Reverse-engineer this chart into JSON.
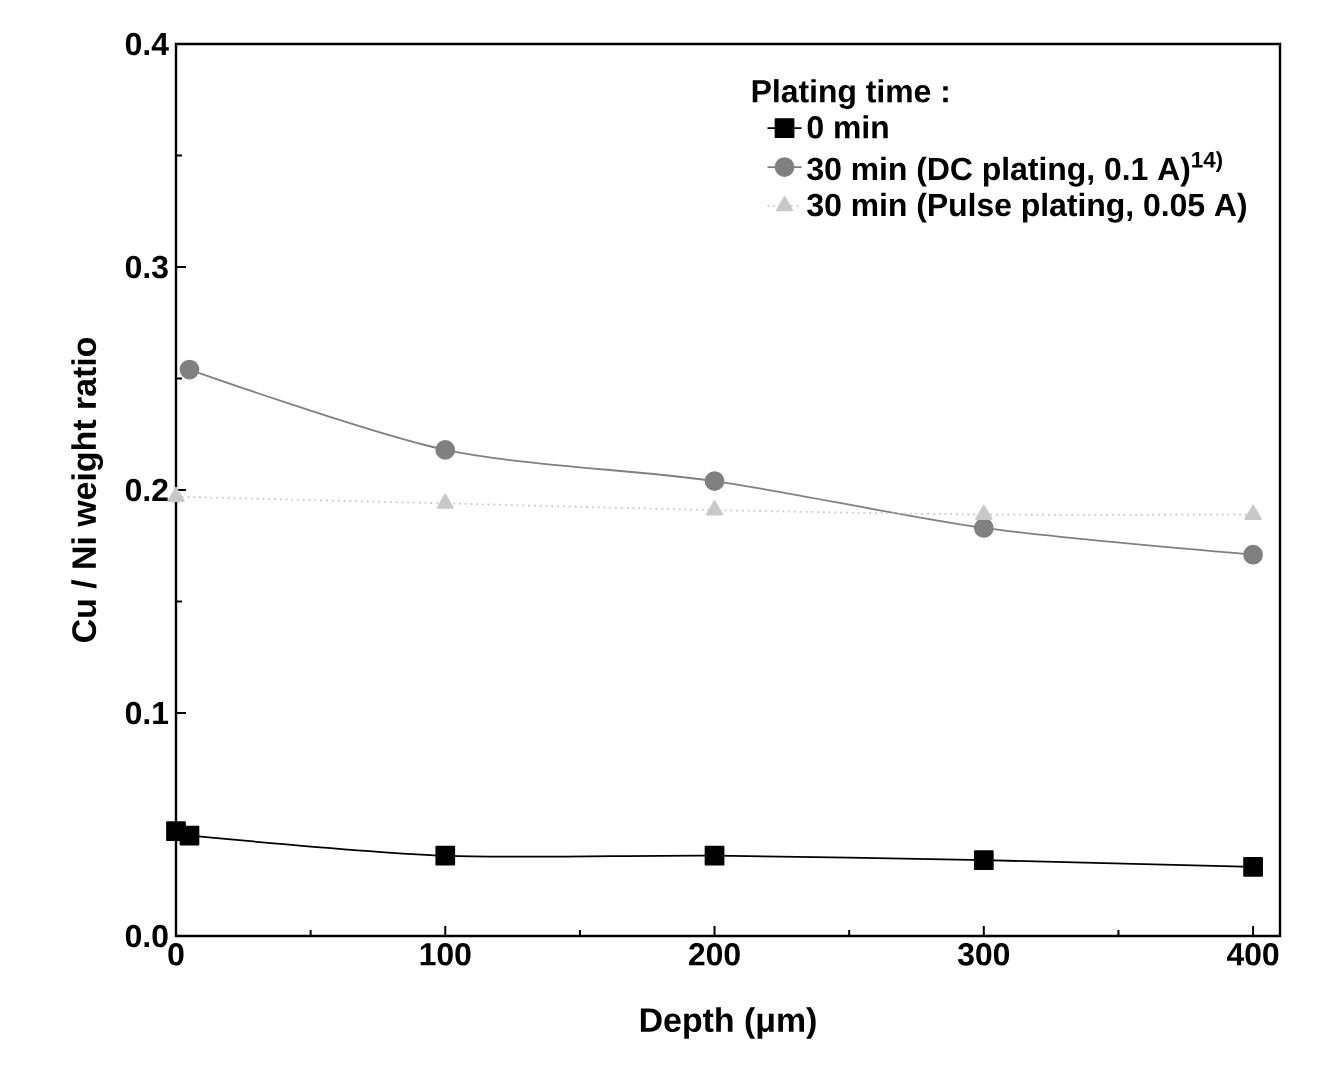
{
  "chart_data": {
    "type": "line",
    "xlabel": "Depth (μm)",
    "ylabel": "Cu / Ni weight ratio",
    "legend_title": "Plating time  :",
    "xlim": [
      0,
      410
    ],
    "ylim": [
      0,
      0.4
    ],
    "xticks": [
      0,
      100,
      200,
      300,
      400
    ],
    "yticks": [
      {
        "value": 0,
        "label": "0.0"
      },
      0.1,
      0.2,
      0.3,
      0.4
    ],
    "legend": "top right",
    "grid": false,
    "series": [
      {
        "name": "0 min",
        "color": "#000000",
        "marker": "square",
        "line_style": "solid",
        "x": [
          0,
          5,
          100,
          200,
          300,
          400
        ],
        "values": [
          0.047,
          0.045,
          0.036,
          0.036,
          0.034,
          0.031
        ]
      },
      {
        "name": "30 min (DC plating, 0.1 A)$^{14)}$",
        "color": "#808080",
        "marker": "circle",
        "line_style": "solid",
        "x": [
          5,
          100,
          200,
          300,
          400
        ],
        "values": [
          0.254,
          0.218,
          0.204,
          0.183,
          0.171
        ]
      },
      {
        "name": "30 min (Pulse plating, 0.05 A)",
        "color": "#c8c8c8",
        "marker": "triangle",
        "line_style": "dotted",
        "x": [
          0,
          100,
          200,
          300,
          400
        ],
        "values": [
          0.197,
          0.194,
          0.191,
          0.189,
          0.189
        ]
      }
    ]
  }
}
